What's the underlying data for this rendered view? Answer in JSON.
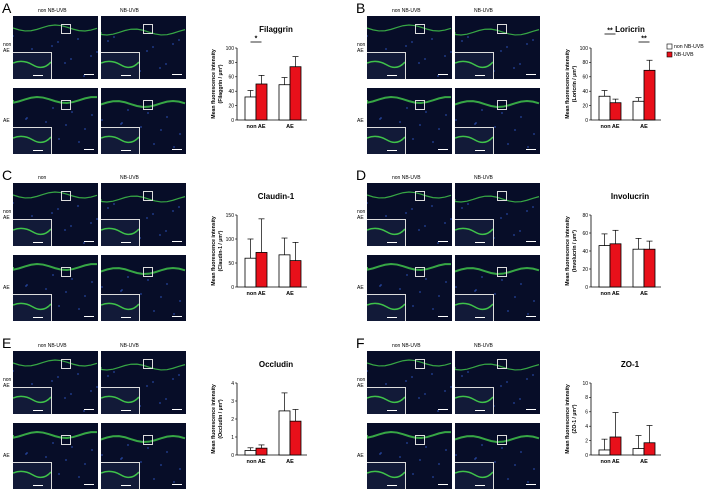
{
  "colors": {
    "non_uvb": "#ffffff",
    "uvb": "#e8101a",
    "stroke": "#000000"
  },
  "legend": {
    "non_uvb": "non NB-UVB",
    "uvb": "NB-UVB"
  },
  "ylabel_common": "Mean fluorescence intensity",
  "col_non": "non",
  "col_uvb_label": "NB-UVB",
  "row_nonae": "non AE",
  "row_ae": "AE",
  "panels": [
    {
      "label": "A",
      "micro": {
        "col1": "non NB-UVB",
        "col2": "NB-UVB",
        "row1": "non\nAE",
        "row2": "AE"
      }
    },
    {
      "label": "B",
      "micro": {
        "col1": "non NB-UVB",
        "col2": "NB-UVB",
        "row1": "non\nAE",
        "row2": "AE"
      }
    },
    {
      "label": "C",
      "micro": {
        "col1": "non",
        "col2": "NB-UVB",
        "row1": "non\nAE",
        "row2": "AE"
      }
    },
    {
      "label": "D",
      "micro": {
        "col1": "non NB-UVB",
        "col2": "NB-UVB",
        "row1": "non\nAE",
        "row2": "AE"
      }
    },
    {
      "label": "E",
      "micro": {
        "col1": "non NB-UVB",
        "col2": "NB-UVB",
        "row1": "non\nAE",
        "row2": "AE"
      }
    },
    {
      "label": "F",
      "micro": {
        "col1": "non NB-UVB",
        "col2": "NB-UVB",
        "row1": "non\nAE",
        "row2": "AE"
      }
    }
  ],
  "chart_data": [
    {
      "type": "bar",
      "title": "Filaggrin",
      "ylabel": "(Filaggrin / µm²)",
      "categories": [
        "non AE",
        "AE"
      ],
      "ylim": [
        0,
        100
      ],
      "yticks": [
        0,
        20,
        40,
        60,
        80,
        100
      ],
      "series": [
        {
          "name": "non NB-UVB",
          "values": [
            32,
            49
          ],
          "err": [
            9,
            10
          ]
        },
        {
          "name": "NB-UVB",
          "values": [
            50,
            74
          ],
          "err": [
            12,
            14
          ]
        }
      ],
      "annotations": [
        {
          "text": "*",
          "from": 0,
          "to": 1
        }
      ],
      "legend": false
    },
    {
      "type": "bar",
      "title": "Loricrin",
      "ylabel": "(Loricrin / µm²)",
      "categories": [
        "non AE",
        "AE"
      ],
      "ylim": [
        0,
        100
      ],
      "yticks": [
        0,
        20,
        40,
        60,
        80,
        100
      ],
      "series": [
        {
          "name": "non NB-UVB",
          "values": [
            33,
            26
          ],
          "err": [
            8,
            5
          ]
        },
        {
          "name": "NB-UVB",
          "values": [
            24,
            69
          ],
          "err": [
            5,
            14
          ]
        }
      ],
      "annotations": [
        {
          "text": "**",
          "from": 0,
          "to": 1
        },
        {
          "text": "**",
          "from": 2,
          "to": 3
        }
      ],
      "legend": true
    },
    {
      "type": "bar",
      "title": "Claudin-1",
      "ylabel": "(Claudin-1 / µm²)",
      "categories": [
        "non AE",
        "AE"
      ],
      "ylim": [
        0,
        150
      ],
      "yticks": [
        0,
        50,
        100,
        150
      ],
      "series": [
        {
          "name": "non NB-UVB",
          "values": [
            60,
            67
          ],
          "err": [
            40,
            35
          ]
        },
        {
          "name": "NB-UVB",
          "values": [
            72,
            55
          ],
          "err": [
            70,
            38
          ]
        }
      ],
      "annotations": [],
      "legend": false
    },
    {
      "type": "bar",
      "title": "Involucrin",
      "ylabel": "(Involucrin / µm²)",
      "categories": [
        "non AE",
        "AE"
      ],
      "ylim": [
        0,
        80
      ],
      "yticks": [
        0,
        20,
        40,
        60,
        80
      ],
      "series": [
        {
          "name": "non NB-UVB",
          "values": [
            46,
            42
          ],
          "err": [
            13,
            12
          ]
        },
        {
          "name": "NB-UVB",
          "values": [
            48,
            42
          ],
          "err": [
            15,
            9
          ]
        }
      ],
      "annotations": [],
      "legend": false
    },
    {
      "type": "bar",
      "title": "Occludin",
      "ylabel": "(Occludin / µm²)",
      "categories": [
        "non AE",
        "AE"
      ],
      "ylim": [
        0,
        4
      ],
      "yticks": [
        0,
        1,
        2,
        3,
        4
      ],
      "series": [
        {
          "name": "non NB-UVB",
          "values": [
            0.25,
            2.45
          ],
          "err": [
            0.15,
            1.0
          ]
        },
        {
          "name": "NB-UVB",
          "values": [
            0.38,
            1.88
          ],
          "err": [
            0.18,
            0.65
          ]
        }
      ],
      "annotations": [],
      "legend": false
    },
    {
      "type": "bar",
      "title": "ZO-1",
      "ylabel": "(ZO-1 / µm²)",
      "categories": [
        "non AE",
        "AE"
      ],
      "ylim": [
        0,
        10
      ],
      "yticks": [
        0,
        2,
        4,
        6,
        8,
        10
      ],
      "series": [
        {
          "name": "non NB-UVB",
          "values": [
            0.7,
            0.9
          ],
          "err": [
            1.5,
            1.8
          ]
        },
        {
          "name": "NB-UVB",
          "values": [
            2.5,
            1.7
          ],
          "err": [
            3.4,
            2.4
          ]
        }
      ],
      "annotations": [],
      "legend": false
    }
  ]
}
